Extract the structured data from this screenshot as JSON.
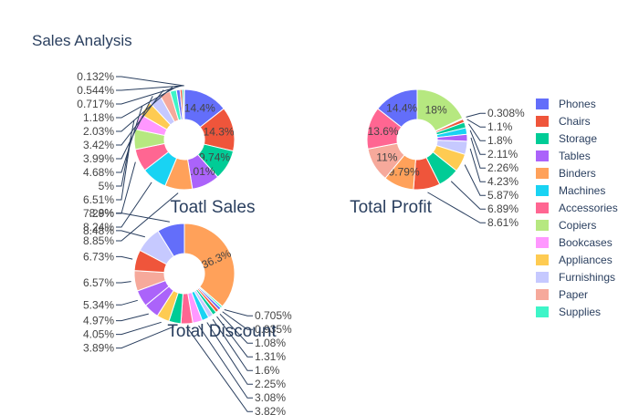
{
  "chart_data": {
    "type": "pie",
    "title": "Sales Analysis",
    "legend": {
      "placement": "right",
      "entries": [
        {
          "name": "Phones",
          "color": "#636efa"
        },
        {
          "name": "Chairs",
          "color": "#ef553b"
        },
        {
          "name": "Storage",
          "color": "#00cc96"
        },
        {
          "name": "Tables",
          "color": "#ab63fa"
        },
        {
          "name": "Binders",
          "color": "#ffa15a"
        },
        {
          "name": "Machines",
          "color": "#19d3f3"
        },
        {
          "name": "Accessories",
          "color": "#ff6692"
        },
        {
          "name": "Copiers",
          "color": "#b6e880"
        },
        {
          "name": "Bookcases",
          "color": "#ff97ff"
        },
        {
          "name": "Appliances",
          "color": "#fecb52"
        },
        {
          "name": "Furnishings",
          "color": "#c6c9ff"
        },
        {
          "name": "Paper",
          "color": "#f6a99b"
        },
        {
          "name": "Supplies",
          "color": "#3ef5c8"
        }
      ]
    },
    "charts": [
      {
        "title": "Toatl Sales",
        "hole": 0.4,
        "slices": [
          {
            "category": "Phones",
            "value": 14.4
          },
          {
            "category": "Chairs",
            "value": 14.3
          },
          {
            "category": "Storage",
            "value": 9.74
          },
          {
            "category": "Tables",
            "value": 9.01
          },
          {
            "category": "Binders",
            "value": 8.85
          },
          {
            "category": "Machines",
            "value": 8.24
          },
          {
            "category": "Accessories",
            "value": 7.29
          },
          {
            "category": "Copiers",
            "value": 6.51
          },
          {
            "category": "Bookcases",
            "value": 5
          },
          {
            "category": "Appliances",
            "value": 4.68
          },
          {
            "category": "Furnishings",
            "value": 3.99
          },
          {
            "category": "Paper",
            "value": 3.42
          },
          {
            "category": "Supplies",
            "value": 2.03
          },
          {
            "category": "Phones",
            "value": 1.18
          },
          {
            "category": "Chairs",
            "value": 0.717
          },
          {
            "category": "Storage",
            "value": 0.544
          },
          {
            "category": "Tables",
            "value": 0.132
          }
        ]
      },
      {
        "title": "Total Profit",
        "hole": 0.4,
        "slices": [
          {
            "category": "Copiers",
            "value": 18
          },
          {
            "category": "Phones",
            "value": 0.308
          },
          {
            "category": "Chairs",
            "value": 1.1
          },
          {
            "category": "Storage",
            "value": 1.8
          },
          {
            "category": "Machines",
            "value": 2.11
          },
          {
            "category": "Tables",
            "value": 2.26
          },
          {
            "category": "Furnishings",
            "value": 4.23
          },
          {
            "category": "Appliances",
            "value": 5.87
          },
          {
            "category": "Storage",
            "value": 6.89
          },
          {
            "category": "Chairs",
            "value": 8.61
          },
          {
            "category": "Binders",
            "value": 9.79
          },
          {
            "category": "Paper",
            "value": 11
          },
          {
            "category": "Accessories",
            "value": 13.6
          },
          {
            "category": "Phones",
            "value": 14.4
          }
        ]
      },
      {
        "title": "Total Discount",
        "hole": 0.4,
        "slices": [
          {
            "category": "Binders",
            "value": 36.3
          },
          {
            "category": "Supplies",
            "value": 0.705
          },
          {
            "category": "Phones",
            "value": 0.935
          },
          {
            "category": "Chairs",
            "value": 1.08
          },
          {
            "category": "Storage",
            "value": 1.31
          },
          {
            "category": "Furnishings",
            "value": 1.6
          },
          {
            "category": "Machines",
            "value": 2.25
          },
          {
            "category": "Bookcases",
            "value": 3.08
          },
          {
            "category": "Accessories",
            "value": 3.82
          },
          {
            "category": "Storage",
            "value": 3.89
          },
          {
            "category": "Appliances",
            "value": 4.05
          },
          {
            "category": "Tables",
            "value": 4.97
          },
          {
            "category": "Tables",
            "value": 5.34
          },
          {
            "category": "Paper",
            "value": 6.57
          },
          {
            "category": "Chairs",
            "value": 6.73
          },
          {
            "category": "Furnishings",
            "value": 8.48
          },
          {
            "category": "Phones",
            "value": 8.8
          }
        ]
      }
    ]
  }
}
